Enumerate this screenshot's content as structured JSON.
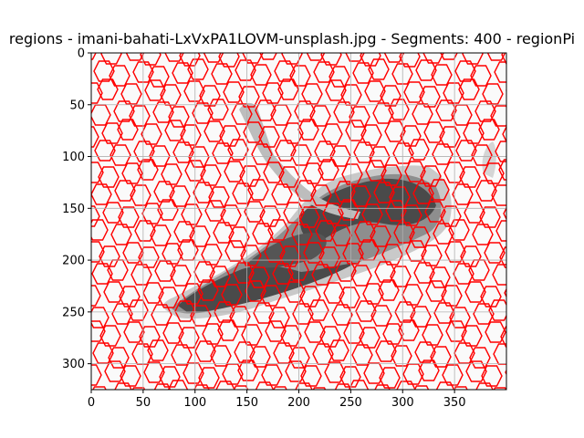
{
  "chart_data": {
    "type": "image",
    "title": "regions - imani-bahati-LxVxPA1LOVM-unsplash.jpg - Segments: 400 - regionPi",
    "xlabel": "",
    "ylabel": "",
    "xlim": [
      0,
      400
    ],
    "ylim": [
      325,
      0
    ],
    "x_ticks": [
      0,
      50,
      100,
      150,
      200,
      250,
      300,
      350
    ],
    "y_ticks": [
      0,
      50,
      100,
      150,
      200,
      250,
      300
    ],
    "grid": true,
    "image_size": {
      "width": 400,
      "height": 325
    },
    "colors": {
      "background_region": "#fafafa",
      "boundary": "#ff0000",
      "grid": "#b0b0b0",
      "shoe_light": "#cfcfcf",
      "shoe_mid": "#8c8c8c",
      "shoe_dark": "#4a4a4a"
    },
    "segments": 400
  }
}
